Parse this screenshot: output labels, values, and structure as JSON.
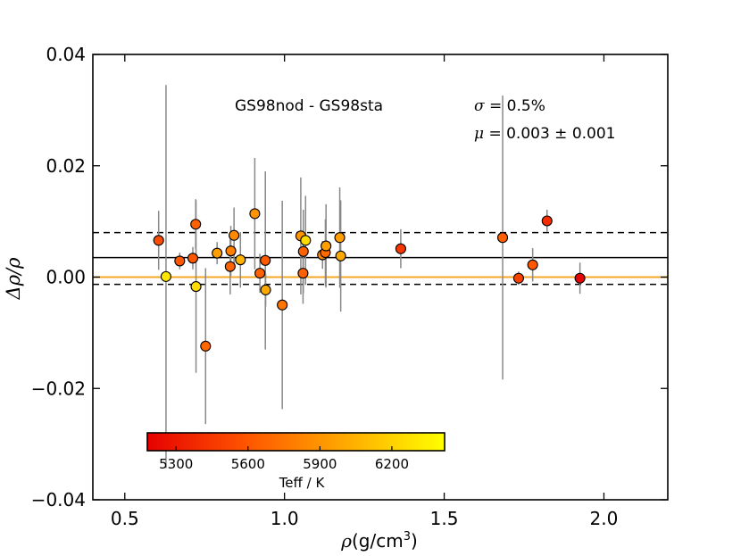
{
  "chart_data": {
    "type": "scatter",
    "title": "",
    "xlabel_symbol": "ρ",
    "xlabel_unit": "(g/cm",
    "xlabel_power": "3",
    "xlabel_close": ")",
    "ylabel": "Δρ/ρ",
    "xlim": [
      0.4,
      2.2
    ],
    "ylim": [
      -0.04,
      0.04
    ],
    "xticks": [
      0.5,
      1.0,
      1.5,
      2.0
    ],
    "xtick_labels": [
      "0.5",
      "1.0",
      "1.5",
      "2.0"
    ],
    "yticks": [
      -0.04,
      -0.02,
      0.0,
      0.02,
      0.04
    ],
    "ytick_labels": [
      "−0.04",
      "−0.02",
      "0.00",
      "0.02",
      "0.04"
    ],
    "annotation_label": "GS98nod - GS98sta",
    "sigma_symbol": "σ",
    "sigma_text": " = 0.5%",
    "mu_symbol": "μ",
    "mu_text": " = 0.003 ± 0.001",
    "reference_lines": {
      "mean": 0.0035,
      "upper_dashed": 0.008,
      "lower_dashed": -0.0013,
      "zero": 0.0,
      "mean_color": "#000000",
      "dashed_color": "#000000",
      "zero_color": "#f5a623"
    },
    "colorbar": {
      "label": "Teff / K",
      "range": [
        5180,
        6420
      ],
      "ticks": [
        5300,
        5600,
        5900,
        6200
      ],
      "tick_labels": [
        "5300",
        "5600",
        "5900",
        "6200"
      ],
      "colors": [
        "#e60000",
        "#ff5500",
        "#ffaa00",
        "#ffff00"
      ]
    },
    "points": [
      {
        "x": 0.606,
        "y": 0.0066,
        "err": 0.0053,
        "teff": 5550
      },
      {
        "x": 0.629,
        "y": 0.0001,
        "err": 0.0344,
        "teff": 6300
      },
      {
        "x": 0.672,
        "y": 0.0029,
        "err": 0.0015,
        "teff": 5600
      },
      {
        "x": 0.713,
        "y": 0.0034,
        "err": 0.002,
        "teff": 5600
      },
      {
        "x": 0.722,
        "y": 0.0095,
        "err": 0.0045,
        "teff": 5650
      },
      {
        "x": 0.723,
        "y": -0.0017,
        "err": 0.0155,
        "teff": 6250
      },
      {
        "x": 0.753,
        "y": -0.0124,
        "err": 0.014,
        "teff": 5680
      },
      {
        "x": 0.789,
        "y": 0.0043,
        "err": 0.002,
        "teff": 5950
      },
      {
        "x": 0.83,
        "y": 0.0019,
        "err": 0.005,
        "teff": 5650
      },
      {
        "x": 0.832,
        "y": 0.0047,
        "err": 0.0045,
        "teff": 5800
      },
      {
        "x": 0.842,
        "y": 0.0075,
        "err": 0.005,
        "teff": 5850
      },
      {
        "x": 0.862,
        "y": 0.0031,
        "err": 0.005,
        "teff": 6050
      },
      {
        "x": 0.907,
        "y": 0.0114,
        "err": 0.01,
        "teff": 5900
      },
      {
        "x": 0.923,
        "y": 0.0007,
        "err": 0.0035,
        "teff": 5650
      },
      {
        "x": 0.94,
        "y": 0.003,
        "err": 0.016,
        "teff": 5620
      },
      {
        "x": 0.941,
        "y": -0.0023,
        "err": 0.003,
        "teff": 6000
      },
      {
        "x": 0.993,
        "y": -0.005,
        "err": 0.0187,
        "teff": 5750
      },
      {
        "x": 1.051,
        "y": 0.0074,
        "err": 0.0105,
        "teff": 5900
      },
      {
        "x": 1.059,
        "y": 0.0046,
        "err": 0.0075,
        "teff": 5650
      },
      {
        "x": 1.058,
        "y": 0.0007,
        "err": 0.0055,
        "teff": 5650
      },
      {
        "x": 1.066,
        "y": 0.0066,
        "err": 0.008,
        "teff": 6250
      },
      {
        "x": 1.119,
        "y": 0.004,
        "err": 0.0025,
        "teff": 5850
      },
      {
        "x": 1.128,
        "y": 0.0044,
        "err": 0.006,
        "teff": 5700
      },
      {
        "x": 1.13,
        "y": 0.0056,
        "err": 0.0075,
        "teff": 5950
      },
      {
        "x": 1.173,
        "y": 0.0071,
        "err": 0.009,
        "teff": 5950
      },
      {
        "x": 1.176,
        "y": 0.0038,
        "err": 0.01,
        "teff": 6000
      },
      {
        "x": 1.364,
        "y": 0.0051,
        "err": 0.0035,
        "teff": 5450
      },
      {
        "x": 1.683,
        "y": 0.0071,
        "err": 0.0255,
        "teff": 5650
      },
      {
        "x": 1.733,
        "y": -0.0002,
        "err": 0.0012,
        "teff": 5500
      },
      {
        "x": 1.777,
        "y": 0.0022,
        "err": 0.003,
        "teff": 5600
      },
      {
        "x": 1.822,
        "y": 0.0101,
        "err": 0.002,
        "teff": 5400
      },
      {
        "x": 1.925,
        "y": -0.0002,
        "err": 0.0028,
        "teff": 5200
      }
    ]
  }
}
